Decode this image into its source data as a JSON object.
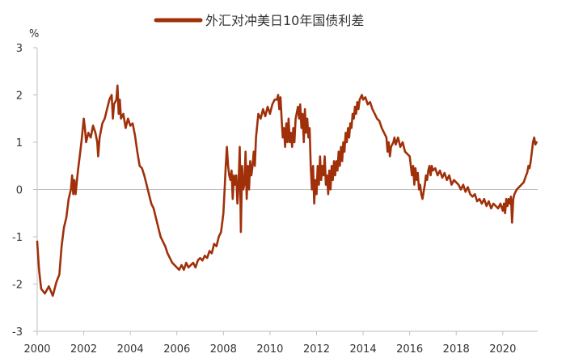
{
  "chart_data": {
    "type": "line",
    "unit": "%",
    "legend_position": "top",
    "grid": false,
    "series": [
      {
        "name": "外汇对冲美日10年国债利差",
        "color": "#a0300a",
        "points": [
          [
            2000.0,
            -1.1
          ],
          [
            2000.08,
            -1.7
          ],
          [
            2000.17,
            -2.1
          ],
          [
            2000.33,
            -2.2
          ],
          [
            2000.5,
            -2.05
          ],
          [
            2000.67,
            -2.25
          ],
          [
            2000.83,
            -1.95
          ],
          [
            2000.95,
            -1.8
          ],
          [
            2001.05,
            -1.2
          ],
          [
            2001.15,
            -0.8
          ],
          [
            2001.25,
            -0.6
          ],
          [
            2001.35,
            -0.2
          ],
          [
            2001.45,
            0.0
          ],
          [
            2001.5,
            0.3
          ],
          [
            2001.55,
            -0.1
          ],
          [
            2001.6,
            0.2
          ],
          [
            2001.65,
            -0.1
          ],
          [
            2001.75,
            0.4
          ],
          [
            2001.85,
            0.8
          ],
          [
            2001.92,
            1.1
          ],
          [
            2002.0,
            1.5
          ],
          [
            2002.05,
            1.3
          ],
          [
            2002.1,
            1.0
          ],
          [
            2002.2,
            1.2
          ],
          [
            2002.3,
            1.1
          ],
          [
            2002.4,
            1.35
          ],
          [
            2002.5,
            1.2
          ],
          [
            2002.58,
            1.0
          ],
          [
            2002.62,
            0.7
          ],
          [
            2002.68,
            1.1
          ],
          [
            2002.8,
            1.4
          ],
          [
            2002.9,
            1.5
          ],
          [
            2003.0,
            1.7
          ],
          [
            2003.1,
            1.9
          ],
          [
            2003.2,
            2.0
          ],
          [
            2003.25,
            1.5
          ],
          [
            2003.3,
            1.8
          ],
          [
            2003.4,
            1.9
          ],
          [
            2003.45,
            2.2
          ],
          [
            2003.5,
            1.6
          ],
          [
            2003.55,
            1.9
          ],
          [
            2003.6,
            1.5
          ],
          [
            2003.7,
            1.6
          ],
          [
            2003.8,
            1.3
          ],
          [
            2003.9,
            1.5
          ],
          [
            2004.0,
            1.35
          ],
          [
            2004.1,
            1.4
          ],
          [
            2004.2,
            1.15
          ],
          [
            2004.3,
            0.8
          ],
          [
            2004.4,
            0.5
          ],
          [
            2004.5,
            0.45
          ],
          [
            2004.6,
            0.3
          ],
          [
            2004.7,
            0.1
          ],
          [
            2004.8,
            -0.1
          ],
          [
            2004.9,
            -0.3
          ],
          [
            2005.0,
            -0.4
          ],
          [
            2005.1,
            -0.6
          ],
          [
            2005.2,
            -0.8
          ],
          [
            2005.3,
            -1.0
          ],
          [
            2005.4,
            -1.1
          ],
          [
            2005.5,
            -1.2
          ],
          [
            2005.6,
            -1.35
          ],
          [
            2005.7,
            -1.45
          ],
          [
            2005.8,
            -1.55
          ],
          [
            2005.9,
            -1.6
          ],
          [
            2006.0,
            -1.65
          ],
          [
            2006.1,
            -1.7
          ],
          [
            2006.2,
            -1.6
          ],
          [
            2006.3,
            -1.7
          ],
          [
            2006.4,
            -1.55
          ],
          [
            2006.5,
            -1.65
          ],
          [
            2006.6,
            -1.6
          ],
          [
            2006.7,
            -1.55
          ],
          [
            2006.8,
            -1.65
          ],
          [
            2006.9,
            -1.5
          ],
          [
            2007.0,
            -1.45
          ],
          [
            2007.1,
            -1.5
          ],
          [
            2007.2,
            -1.4
          ],
          [
            2007.3,
            -1.45
          ],
          [
            2007.4,
            -1.3
          ],
          [
            2007.5,
            -1.35
          ],
          [
            2007.6,
            -1.15
          ],
          [
            2007.7,
            -1.2
          ],
          [
            2007.8,
            -1.0
          ],
          [
            2007.9,
            -0.9
          ],
          [
            2008.0,
            -0.5
          ],
          [
            2008.05,
            0.0
          ],
          [
            2008.1,
            0.5
          ],
          [
            2008.15,
            0.9
          ],
          [
            2008.2,
            0.5
          ],
          [
            2008.25,
            0.3
          ],
          [
            2008.3,
            0.2
          ],
          [
            2008.35,
            0.4
          ],
          [
            2008.4,
            -0.2
          ],
          [
            2008.45,
            0.3
          ],
          [
            2008.5,
            0.1
          ],
          [
            2008.55,
            0.3
          ],
          [
            2008.6,
            -0.3
          ],
          [
            2008.65,
            0.1
          ],
          [
            2008.7,
            0.9
          ],
          [
            2008.75,
            -0.9
          ],
          [
            2008.8,
            0.5
          ],
          [
            2008.85,
            0.0
          ],
          [
            2008.9,
            0.1
          ],
          [
            2008.95,
            0.8
          ],
          [
            2009.0,
            -0.2
          ],
          [
            2009.05,
            0.5
          ],
          [
            2009.1,
            0.0
          ],
          [
            2009.15,
            0.6
          ],
          [
            2009.2,
            0.3
          ],
          [
            2009.25,
            0.5
          ],
          [
            2009.3,
            0.8
          ],
          [
            2009.35,
            0.5
          ],
          [
            2009.4,
            1.1
          ],
          [
            2009.5,
            1.6
          ],
          [
            2009.6,
            1.5
          ],
          [
            2009.7,
            1.7
          ],
          [
            2009.8,
            1.55
          ],
          [
            2009.9,
            1.75
          ],
          [
            2010.0,
            1.6
          ],
          [
            2010.1,
            1.8
          ],
          [
            2010.2,
            1.9
          ],
          [
            2010.3,
            1.9
          ],
          [
            2010.35,
            2.0
          ],
          [
            2010.4,
            1.7
          ],
          [
            2010.45,
            1.95
          ],
          [
            2010.5,
            1.5
          ],
          [
            2010.55,
            1.1
          ],
          [
            2010.6,
            1.3
          ],
          [
            2010.65,
            0.9
          ],
          [
            2010.7,
            1.4
          ],
          [
            2010.75,
            1.0
          ],
          [
            2010.8,
            1.5
          ],
          [
            2010.85,
            1.0
          ],
          [
            2010.9,
            1.2
          ],
          [
            2010.95,
            0.9
          ],
          [
            2011.0,
            1.3
          ],
          [
            2011.05,
            1.0
          ],
          [
            2011.1,
            1.5
          ],
          [
            2011.2,
            1.75
          ],
          [
            2011.25,
            1.5
          ],
          [
            2011.3,
            1.8
          ],
          [
            2011.35,
            1.3
          ],
          [
            2011.4,
            1.6
          ],
          [
            2011.45,
            1.0
          ],
          [
            2011.5,
            1.7
          ],
          [
            2011.55,
            1.2
          ],
          [
            2011.6,
            1.5
          ],
          [
            2011.65,
            1.1
          ],
          [
            2011.7,
            1.3
          ],
          [
            2011.75,
            0.5
          ],
          [
            2011.8,
            0.0
          ],
          [
            2011.85,
            0.5
          ],
          [
            2011.9,
            -0.3
          ],
          [
            2011.95,
            0.2
          ],
          [
            2012.0,
            -0.1
          ],
          [
            2012.05,
            0.5
          ],
          [
            2012.1,
            0.1
          ],
          [
            2012.15,
            0.7
          ],
          [
            2012.2,
            0.2
          ],
          [
            2012.25,
            0.5
          ],
          [
            2012.3,
            0.3
          ],
          [
            2012.35,
            0.7
          ],
          [
            2012.4,
            0.1
          ],
          [
            2012.45,
            0.3
          ],
          [
            2012.5,
            -0.1
          ],
          [
            2012.55,
            0.4
          ],
          [
            2012.6,
            0.0
          ],
          [
            2012.65,
            0.5
          ],
          [
            2012.7,
            0.2
          ],
          [
            2012.75,
            0.6
          ],
          [
            2012.8,
            0.3
          ],
          [
            2012.85,
            0.6
          ],
          [
            2012.9,
            0.4
          ],
          [
            2012.95,
            0.8
          ],
          [
            2013.0,
            0.5
          ],
          [
            2013.05,
            0.9
          ],
          [
            2013.1,
            0.6
          ],
          [
            2013.15,
            1.0
          ],
          [
            2013.2,
            0.8
          ],
          [
            2013.25,
            1.2
          ],
          [
            2013.3,
            1.0
          ],
          [
            2013.35,
            1.3
          ],
          [
            2013.4,
            1.1
          ],
          [
            2013.45,
            1.4
          ],
          [
            2013.5,
            1.3
          ],
          [
            2013.55,
            1.6
          ],
          [
            2013.6,
            1.5
          ],
          [
            2013.65,
            1.75
          ],
          [
            2013.7,
            1.6
          ],
          [
            2013.75,
            1.85
          ],
          [
            2013.8,
            1.7
          ],
          [
            2013.85,
            1.9
          ],
          [
            2013.9,
            1.95
          ],
          [
            2013.95,
            2.0
          ],
          [
            2014.0,
            1.9
          ],
          [
            2014.1,
            1.95
          ],
          [
            2014.2,
            1.8
          ],
          [
            2014.3,
            1.85
          ],
          [
            2014.4,
            1.7
          ],
          [
            2014.5,
            1.6
          ],
          [
            2014.6,
            1.5
          ],
          [
            2014.7,
            1.45
          ],
          [
            2014.8,
            1.3
          ],
          [
            2014.9,
            1.2
          ],
          [
            2015.0,
            1.1
          ],
          [
            2015.05,
            0.8
          ],
          [
            2015.1,
            1.0
          ],
          [
            2015.15,
            0.7
          ],
          [
            2015.2,
            0.9
          ],
          [
            2015.3,
            1.0
          ],
          [
            2015.35,
            1.1
          ],
          [
            2015.4,
            0.95
          ],
          [
            2015.5,
            1.1
          ],
          [
            2015.6,
            0.9
          ],
          [
            2015.7,
            1.0
          ],
          [
            2015.8,
            0.8
          ],
          [
            2015.9,
            0.75
          ],
          [
            2016.0,
            0.7
          ],
          [
            2016.05,
            0.5
          ],
          [
            2016.1,
            0.3
          ],
          [
            2016.15,
            0.5
          ],
          [
            2016.2,
            0.1
          ],
          [
            2016.25,
            0.45
          ],
          [
            2016.3,
            0.2
          ],
          [
            2016.35,
            0.35
          ],
          [
            2016.4,
            0.0
          ],
          [
            2016.45,
            0.1
          ],
          [
            2016.5,
            -0.1
          ],
          [
            2016.55,
            -0.2
          ],
          [
            2016.6,
            -0.05
          ],
          [
            2016.65,
            0.1
          ],
          [
            2016.7,
            0.3
          ],
          [
            2016.75,
            0.2
          ],
          [
            2016.8,
            0.4
          ],
          [
            2016.85,
            0.5
          ],
          [
            2016.9,
            0.3
          ],
          [
            2016.95,
            0.5
          ],
          [
            2017.0,
            0.4
          ],
          [
            2017.1,
            0.45
          ],
          [
            2017.2,
            0.3
          ],
          [
            2017.3,
            0.4
          ],
          [
            2017.4,
            0.25
          ],
          [
            2017.5,
            0.35
          ],
          [
            2017.6,
            0.2
          ],
          [
            2017.7,
            0.3
          ],
          [
            2017.8,
            0.1
          ],
          [
            2017.9,
            0.2
          ],
          [
            2018.0,
            0.15
          ],
          [
            2018.1,
            0.1
          ],
          [
            2018.2,
            0.0
          ],
          [
            2018.3,
            0.1
          ],
          [
            2018.4,
            -0.05
          ],
          [
            2018.5,
            0.05
          ],
          [
            2018.6,
            -0.1
          ],
          [
            2018.7,
            -0.15
          ],
          [
            2018.8,
            -0.1
          ],
          [
            2018.9,
            -0.25
          ],
          [
            2019.0,
            -0.2
          ],
          [
            2019.1,
            -0.3
          ],
          [
            2019.2,
            -0.2
          ],
          [
            2019.3,
            -0.35
          ],
          [
            2019.4,
            -0.25
          ],
          [
            2019.5,
            -0.4
          ],
          [
            2019.6,
            -0.3
          ],
          [
            2019.7,
            -0.35
          ],
          [
            2019.8,
            -0.4
          ],
          [
            2019.9,
            -0.3
          ],
          [
            2020.0,
            -0.45
          ],
          [
            2020.05,
            -0.3
          ],
          [
            2020.1,
            -0.5
          ],
          [
            2020.15,
            -0.2
          ],
          [
            2020.2,
            -0.35
          ],
          [
            2020.25,
            -0.2
          ],
          [
            2020.3,
            -0.3
          ],
          [
            2020.35,
            -0.15
          ],
          [
            2020.4,
            -0.7
          ],
          [
            2020.45,
            -0.2
          ],
          [
            2020.5,
            -0.1
          ],
          [
            2020.6,
            0.0
          ],
          [
            2020.7,
            0.05
          ],
          [
            2020.8,
            0.1
          ],
          [
            2020.9,
            0.15
          ],
          [
            2021.0,
            0.3
          ],
          [
            2021.05,
            0.35
          ],
          [
            2021.1,
            0.5
          ],
          [
            2021.15,
            0.45
          ],
          [
            2021.2,
            0.6
          ],
          [
            2021.25,
            0.8
          ],
          [
            2021.3,
            1.0
          ],
          [
            2021.35,
            1.1
          ],
          [
            2021.4,
            0.95
          ],
          [
            2021.45,
            1.0
          ]
        ]
      }
    ],
    "x_axis": {
      "ticks": [
        2000,
        2002,
        2004,
        2006,
        2008,
        2010,
        2012,
        2014,
        2016,
        2018,
        2020
      ],
      "range": [
        2000,
        2021.5
      ]
    },
    "y_axis": {
      "ticks": [
        3,
        2,
        1,
        0,
        -1,
        -2,
        -3
      ],
      "range": [
        -3,
        3
      ]
    }
  }
}
